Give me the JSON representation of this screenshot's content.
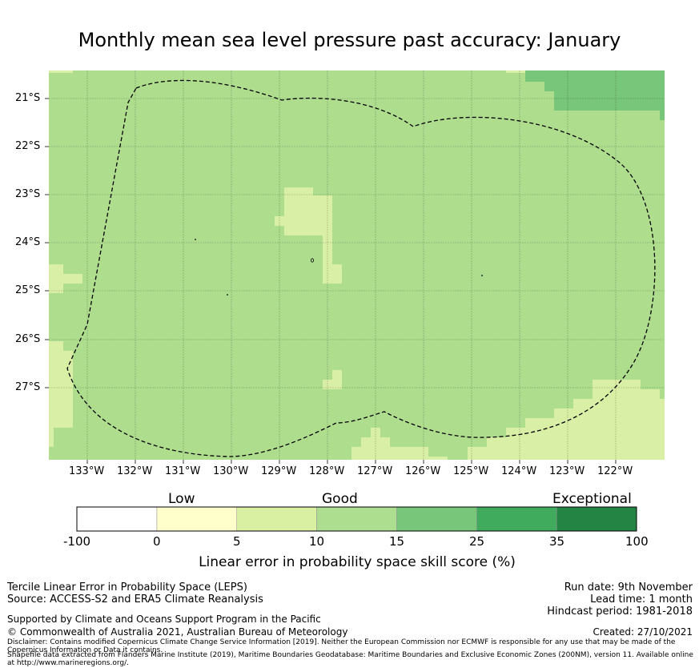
{
  "title": "Monthly mean sea level pressure past accuracy: January",
  "map": {
    "latitude_labels": [
      "21°S",
      "22°S",
      "23°S",
      "24°S",
      "25°S",
      "26°S",
      "27°S"
    ],
    "longitude_labels": [
      "133°W",
      "132°W",
      "131°W",
      "130°W",
      "129°W",
      "128°W",
      "127°W",
      "126°W",
      "125°W",
      "124°W",
      "123°W",
      "122°W"
    ],
    "boundary": "dashed EEZ outline",
    "region_colors": {
      "base": "#aedd8e",
      "light": "#d9efa5",
      "mid": "#78c679"
    }
  },
  "colorbar": {
    "categories": [
      "Low",
      "Good",
      "Exceptional"
    ],
    "ticks": [
      "-100",
      "0",
      "5",
      "10",
      "15",
      "25",
      "35",
      "100"
    ],
    "colors": [
      "#ffffff",
      "#ffffcc",
      "#d9f0a3",
      "#addd8e",
      "#78c679",
      "#41ab5d",
      "#238443"
    ],
    "label": "Linear error in probability space skill score (%)"
  },
  "footer": {
    "left": {
      "line1": "Tercile Linear Error in Probability Space (LEPS)",
      "line2": "Source: ACCESS-S2 and ERA5 Climate Reanalysis",
      "supported": "Supported by Climate and Oceans Support Program in the Pacific",
      "copyright": "© Commonwealth of Australia 2021, Australian Bureau of Meteorology"
    },
    "right": {
      "run_date": "Run date: 9th November",
      "lead_time": "Lead time: 1 month",
      "hindcast": "Hindcast period: 1981-2018",
      "created": "Created: 27/10/2021"
    },
    "disclaimer": "Disclaimer: Contains modified Copernicus Climate Change Service Information [2019]. Neither the European Commission nor ECMWF is responsible for any use that may be made of the Copernicus Information or Data it contains.",
    "shapefile": "Shapefile data extracted from Flanders Marine Institute (2019), Maritime Boundaries Geodatabase: Maritime Boundaries and Exclusive Economic Zones (200NM), version 11. Available online at http://www.marineregions.org/."
  }
}
